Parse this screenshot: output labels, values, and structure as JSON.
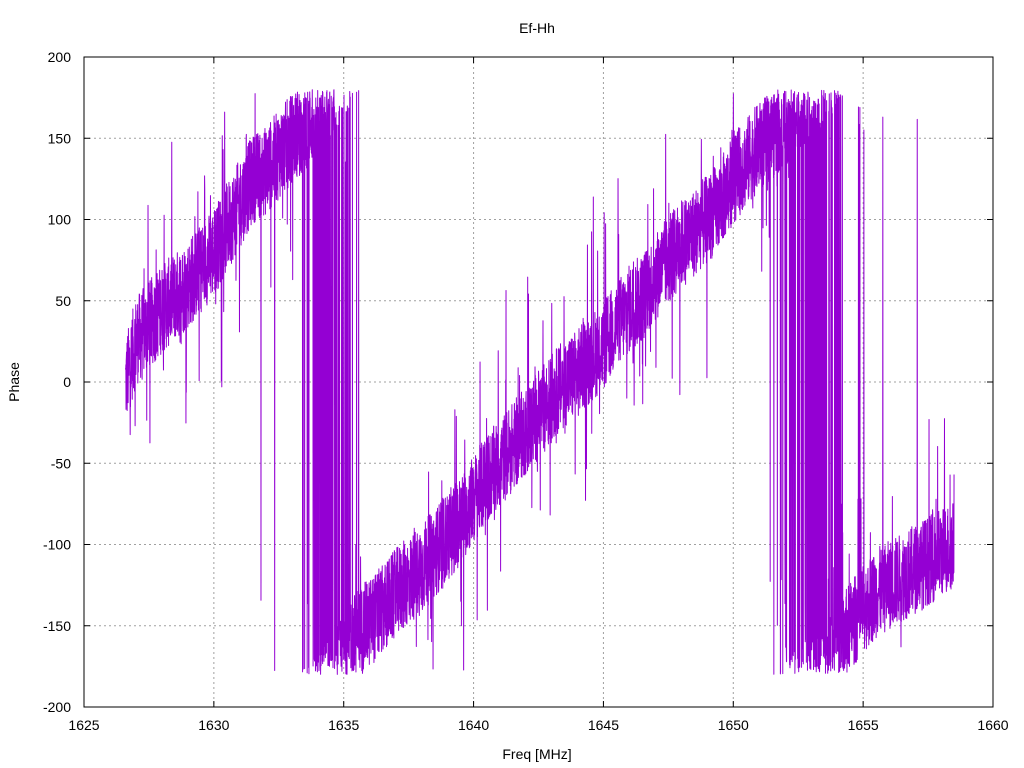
{
  "chart_data": {
    "type": "line",
    "title": "Ef-Hh",
    "xlabel": "Freq [MHz]",
    "ylabel": "Phase",
    "xlim": [
      1625,
      1660
    ],
    "ylim": [
      -200,
      200
    ],
    "x_ticks": [
      1625,
      1630,
      1635,
      1640,
      1645,
      1650,
      1655,
      1660
    ],
    "y_ticks": [
      -200,
      -150,
      -100,
      -50,
      0,
      50,
      100,
      150,
      200
    ],
    "grid": true,
    "legend": "none",
    "series": [
      {
        "color": "#9400d3",
        "x": [
          1626.6,
          1627.0,
          1628.0,
          1629.0,
          1630.0,
          1630.5,
          1631.0,
          1631.5,
          1632.0,
          1632.5,
          1633.0,
          1633.5,
          1634.0,
          1634.5,
          1635.0,
          1635.5,
          1636.0,
          1636.5,
          1637.0,
          1637.5,
          1638.0,
          1638.5,
          1639.0,
          1639.5,
          1640.0,
          1640.5,
          1641.0,
          1641.5,
          1642.0,
          1642.5,
          1643.0,
          1643.5,
          1644.0,
          1644.5,
          1645.0,
          1645.5,
          1646.0,
          1646.5,
          1647.0,
          1647.5,
          1648.0,
          1648.5,
          1649.0,
          1649.5,
          1650.0,
          1650.5,
          1651.0,
          1651.5,
          1652.0,
          1652.5,
          1653.0,
          1653.5,
          1654.0,
          1654.5,
          1655.0,
          1655.5,
          1656.0,
          1656.5,
          1657.0,
          1657.5,
          1658.0,
          1658.5
        ],
        "y": [
          0,
          25,
          45,
          60,
          80,
          95,
          110,
          125,
          130,
          140,
          150,
          158,
          165,
          178,
          -170,
          -155,
          -148,
          -140,
          -130,
          -122,
          -115,
          -105,
          -95,
          -85,
          -72,
          -60,
          -50,
          -40,
          -30,
          -20,
          -10,
          0,
          5,
          15,
          22,
          35,
          45,
          52,
          65,
          75,
          85,
          92,
          100,
          110,
          125,
          135,
          145,
          152,
          160,
          170,
          178,
          -175,
          -165,
          -150,
          -140,
          -130,
          -125,
          -120,
          -115,
          -110,
          -105,
          -100
        ]
      }
    ]
  }
}
